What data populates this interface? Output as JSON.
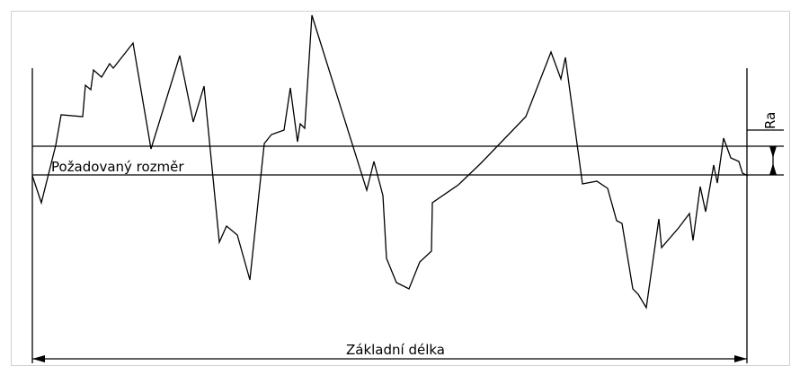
{
  "labels": {
    "required_dimension": "Požadovaný rozměr",
    "base_length": "Základní délka",
    "ra": "Ra"
  },
  "colors": {
    "line": "#000000",
    "background": "#ffffff"
  }
}
